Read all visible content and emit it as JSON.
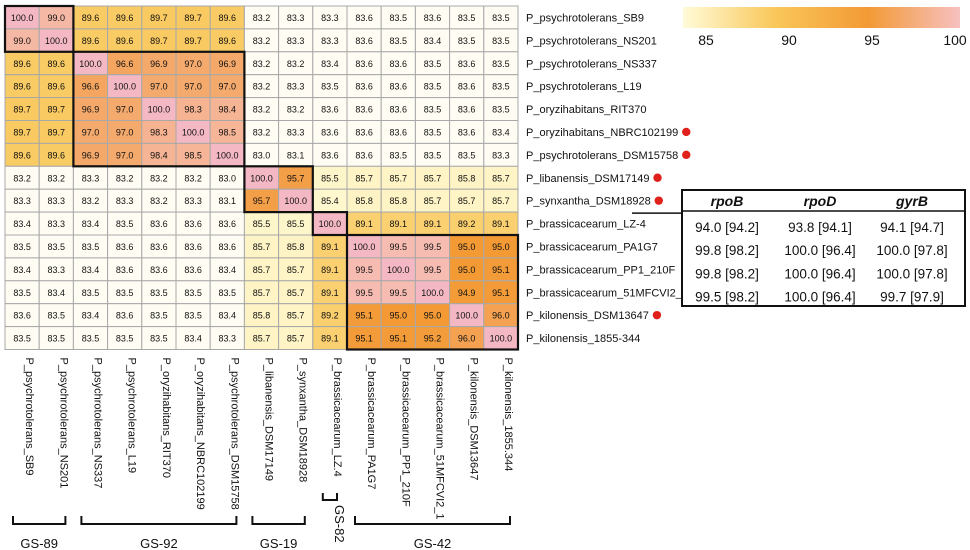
{
  "chart_data": {
    "type": "heatmap",
    "title": "",
    "color_scale": {
      "min": 85,
      "max": 100,
      "tick_labels": [
        "85",
        "90",
        "95",
        "100"
      ],
      "colors": [
        "#fffbd8",
        "#f9c75a",
        "#f39a35",
        "#f6c0c0"
      ]
    },
    "labels": [
      "P_psychrotolerans_SB9",
      "P_psychrotolerans_NS201",
      "P_psychrotolerans_NS337",
      "P_psychrotolerans_L19",
      "P_oryzihabitans_RIT370",
      "P_oryzihabitans_NBRC102199",
      "P_psychrotolerans_DSM15758",
      "P_libanensis_DSM17149",
      "P_synxantha_DSM18928",
      "P_brassicacearum_LZ-4",
      "P_brassicacearum_PA1G7",
      "P_brassicacearum_PP1_210F",
      "P_brassicacearum_51MFCVI2_1",
      "P_kilonensis_DSM13647",
      "P_kilonensis_1855-344"
    ],
    "col_labels": [
      "P_psychrotolerans_SB9",
      "P_psychrotolerans_NS201",
      "P_psychrotolerans_NS337",
      "P_psychrotolerans_L19",
      "P_oryzihabitans_RIT370",
      "P_oryzihabitans_NBRC102199",
      "P_psychrotolerans_DSM15758",
      "P_libanensis_DSM17149",
      "P_synxantha_DSM18928",
      "P_brassicacearum_LZ.4",
      "P_brassicacearum_PA1G7",
      "P_brassicacearum_PP1_210F",
      "P_brassicacearum_51MFCVI2_1",
      "P_kilonensis_DSM13647",
      "P_kilonensis_1855.344"
    ],
    "type_strain_marked": [
      false,
      false,
      false,
      false,
      false,
      true,
      true,
      true,
      true,
      false,
      false,
      false,
      false,
      true,
      false
    ],
    "matrix": [
      [
        "100.0",
        "99.0",
        "89.6",
        "89.6",
        "89.7",
        "89.7",
        "89.6",
        "83.2",
        "83.3",
        "83.3",
        "83.6",
        "83.5",
        "83.6",
        "83.5",
        "83.5"
      ],
      [
        "99.0",
        "100.0",
        "89.6",
        "89.6",
        "89.7",
        "89.7",
        "89.6",
        "83.2",
        "83.3",
        "83.3",
        "83.6",
        "83.5",
        "83.4",
        "83.5",
        "83.5"
      ],
      [
        "89.6",
        "89.6",
        "100.0",
        "96.6",
        "96.9",
        "97.0",
        "96.9",
        "83.2",
        "83.2",
        "83.4",
        "83.6",
        "83.6",
        "83.5",
        "83.6",
        "83.5"
      ],
      [
        "89.6",
        "89.6",
        "96.6",
        "100.0",
        "97.0",
        "97.0",
        "97.0",
        "83.2",
        "83.3",
        "83.5",
        "83.6",
        "83.6",
        "83.5",
        "83.6",
        "83.5"
      ],
      [
        "89.7",
        "89.7",
        "96.9",
        "97.0",
        "100.0",
        "98.3",
        "98.4",
        "83.2",
        "83.2",
        "83.6",
        "83.6",
        "83.6",
        "83.5",
        "83.6",
        "83.5"
      ],
      [
        "89.7",
        "89.7",
        "97.0",
        "97.0",
        "98.3",
        "100.0",
        "98.5",
        "83.2",
        "83.3",
        "83.6",
        "83.6",
        "83.6",
        "83.5",
        "83.6",
        "83.4"
      ],
      [
        "89.6",
        "89.6",
        "96.9",
        "97.0",
        "98.4",
        "98.5",
        "100.0",
        "83.0",
        "83.1",
        "83.6",
        "83.6",
        "83.5",
        "83.5",
        "83.5",
        "83.3"
      ],
      [
        "83.2",
        "83.2",
        "83.3",
        "83.2",
        "83.2",
        "83.2",
        "83.0",
        "100.0",
        "95.7",
        "85.5",
        "85.7",
        "85.7",
        "85.7",
        "85.8",
        "85.7"
      ],
      [
        "83.3",
        "83.3",
        "83.2",
        "83.3",
        "83.2",
        "83.3",
        "83.1",
        "95.7",
        "100.0",
        "85.4",
        "85.8",
        "85.8",
        "85.7",
        "85.7",
        "85.7"
      ],
      [
        "83.4",
        "83.3",
        "83.4",
        "83.5",
        "83.6",
        "83.6",
        "83.6",
        "85.5",
        "85.5",
        "100.0",
        "89.1",
        "89.1",
        "89.1",
        "89.2",
        "89.1"
      ],
      [
        "83.5",
        "83.5",
        "83.5",
        "83.6",
        "83.6",
        "83.6",
        "83.6",
        "85.7",
        "85.8",
        "89.1",
        "100.0",
        "99.5",
        "99.5",
        "95.0",
        "95.0"
      ],
      [
        "83.4",
        "83.3",
        "83.4",
        "83.6",
        "83.6",
        "83.6",
        "83.4",
        "85.7",
        "85.7",
        "89.1",
        "99.5",
        "100.0",
        "99.5",
        "95.0",
        "95.1"
      ],
      [
        "83.5",
        "83.4",
        "83.5",
        "83.5",
        "83.5",
        "83.5",
        "83.5",
        "85.7",
        "85.7",
        "89.1",
        "99.5",
        "99.5",
        "100.0",
        "94.9",
        "95.1"
      ],
      [
        "83.6",
        "83.5",
        "83.4",
        "83.6",
        "83.5",
        "83.5",
        "83.4",
        "85.8",
        "85.7",
        "89.2",
        "95.1",
        "95.0",
        "95.0",
        "100.0",
        "96.0"
      ],
      [
        "83.5",
        "83.5",
        "83.5",
        "83.5",
        "83.5",
        "83.4",
        "83.3",
        "85.7",
        "85.7",
        "89.1",
        "95.1",
        "95.1",
        "95.2",
        "96.0",
        "100.0"
      ]
    ],
    "groups": [
      {
        "name": "GS-89",
        "from": 0,
        "to": 1
      },
      {
        "name": "GS-92",
        "from": 2,
        "to": 6
      },
      {
        "name": "GS-19",
        "from": 7,
        "to": 8
      },
      {
        "name": "GS-82",
        "from": 9,
        "to": 9
      },
      {
        "name": "GS-42",
        "from": 10,
        "to": 14
      }
    ],
    "gene_table": {
      "headers": [
        "rpoB",
        "rpoD",
        "gyrB"
      ],
      "rows": [
        [
          "94.0 [94.2]",
          "93.8 [94.1]",
          "94.1 [94.7]"
        ],
        [
          "99.8 [98.2]",
          "100.0 [96.4]",
          "100.0 [97.8]"
        ],
        [
          "99.8 [98.2]",
          "100.0 [96.4]",
          "100.0 [97.8]"
        ],
        [
          "99.5 [98.2]",
          "100.0 [96.4]",
          "99.7 [97.9]"
        ]
      ]
    }
  }
}
